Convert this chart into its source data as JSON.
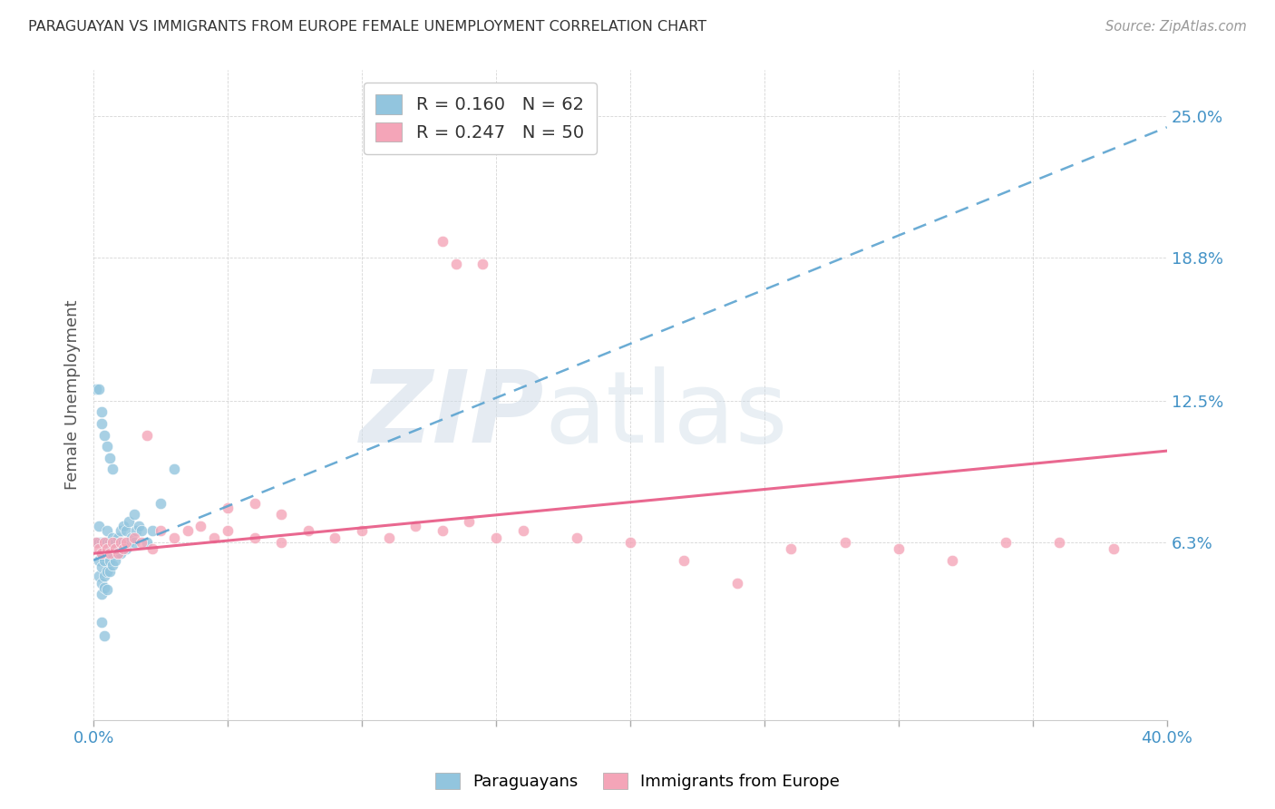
{
  "title": "PARAGUAYAN VS IMMIGRANTS FROM EUROPE FEMALE UNEMPLOYMENT CORRELATION CHART",
  "source": "Source: ZipAtlas.com",
  "ylabel": "Female Unemployment",
  "xlim": [
    0.0,
    0.4
  ],
  "ylim": [
    -0.015,
    0.27
  ],
  "yticks": [
    0.063,
    0.125,
    0.188,
    0.25
  ],
  "ytick_labels": [
    "6.3%",
    "12.5%",
    "18.8%",
    "25.0%"
  ],
  "R_blue": 0.16,
  "N_blue": 62,
  "R_pink": 0.247,
  "N_pink": 50,
  "blue_color": "#92c5de",
  "pink_color": "#f4a5b8",
  "blue_line_color": "#5ba3d0",
  "pink_line_color": "#e8608a",
  "legend_R_color": "#4292c6",
  "legend_N_color": "#e05080",
  "blue_points_x": [
    0.001,
    0.002,
    0.002,
    0.002,
    0.002,
    0.003,
    0.003,
    0.003,
    0.003,
    0.003,
    0.004,
    0.004,
    0.004,
    0.004,
    0.004,
    0.005,
    0.005,
    0.005,
    0.005,
    0.005,
    0.006,
    0.006,
    0.006,
    0.006,
    0.007,
    0.007,
    0.007,
    0.007,
    0.008,
    0.008,
    0.008,
    0.009,
    0.009,
    0.01,
    0.01,
    0.01,
    0.011,
    0.011,
    0.012,
    0.012,
    0.013,
    0.013,
    0.014,
    0.015,
    0.015,
    0.016,
    0.017,
    0.018,
    0.02,
    0.022,
    0.001,
    0.002,
    0.003,
    0.003,
    0.004,
    0.005,
    0.006,
    0.007,
    0.003,
    0.004,
    0.025,
    0.03
  ],
  "blue_points_y": [
    0.063,
    0.063,
    0.055,
    0.048,
    0.07,
    0.063,
    0.058,
    0.052,
    0.045,
    0.04,
    0.063,
    0.06,
    0.055,
    0.048,
    0.043,
    0.068,
    0.063,
    0.058,
    0.05,
    0.042,
    0.063,
    0.06,
    0.055,
    0.05,
    0.065,
    0.062,
    0.058,
    0.053,
    0.063,
    0.06,
    0.055,
    0.065,
    0.058,
    0.068,
    0.063,
    0.058,
    0.07,
    0.063,
    0.068,
    0.06,
    0.072,
    0.063,
    0.065,
    0.075,
    0.063,
    0.068,
    0.07,
    0.068,
    0.063,
    0.068,
    0.13,
    0.13,
    0.12,
    0.115,
    0.11,
    0.105,
    0.1,
    0.095,
    0.028,
    0.022,
    0.08,
    0.095
  ],
  "pink_points_x": [
    0.001,
    0.002,
    0.003,
    0.004,
    0.005,
    0.006,
    0.007,
    0.008,
    0.009,
    0.01,
    0.011,
    0.012,
    0.015,
    0.018,
    0.022,
    0.025,
    0.03,
    0.035,
    0.04,
    0.045,
    0.05,
    0.06,
    0.07,
    0.08,
    0.09,
    0.1,
    0.11,
    0.12,
    0.13,
    0.14,
    0.15,
    0.16,
    0.18,
    0.2,
    0.22,
    0.24,
    0.26,
    0.28,
    0.3,
    0.32,
    0.34,
    0.36,
    0.38,
    0.05,
    0.06,
    0.07,
    0.13,
    0.135,
    0.145,
    0.02
  ],
  "pink_points_y": [
    0.063,
    0.06,
    0.058,
    0.063,
    0.06,
    0.058,
    0.063,
    0.06,
    0.058,
    0.063,
    0.06,
    0.063,
    0.065,
    0.063,
    0.06,
    0.068,
    0.065,
    0.068,
    0.07,
    0.065,
    0.068,
    0.065,
    0.063,
    0.068,
    0.065,
    0.068,
    0.065,
    0.07,
    0.068,
    0.072,
    0.065,
    0.068,
    0.065,
    0.063,
    0.055,
    0.045,
    0.06,
    0.063,
    0.06,
    0.055,
    0.063,
    0.063,
    0.06,
    0.078,
    0.08,
    0.075,
    0.195,
    0.185,
    0.185,
    0.11
  ],
  "blue_line_x0": 0.0,
  "blue_line_y0": 0.055,
  "blue_line_x1": 0.4,
  "blue_line_y1": 0.245,
  "pink_line_x0": 0.0,
  "pink_line_y0": 0.058,
  "pink_line_x1": 0.4,
  "pink_line_y1": 0.103
}
